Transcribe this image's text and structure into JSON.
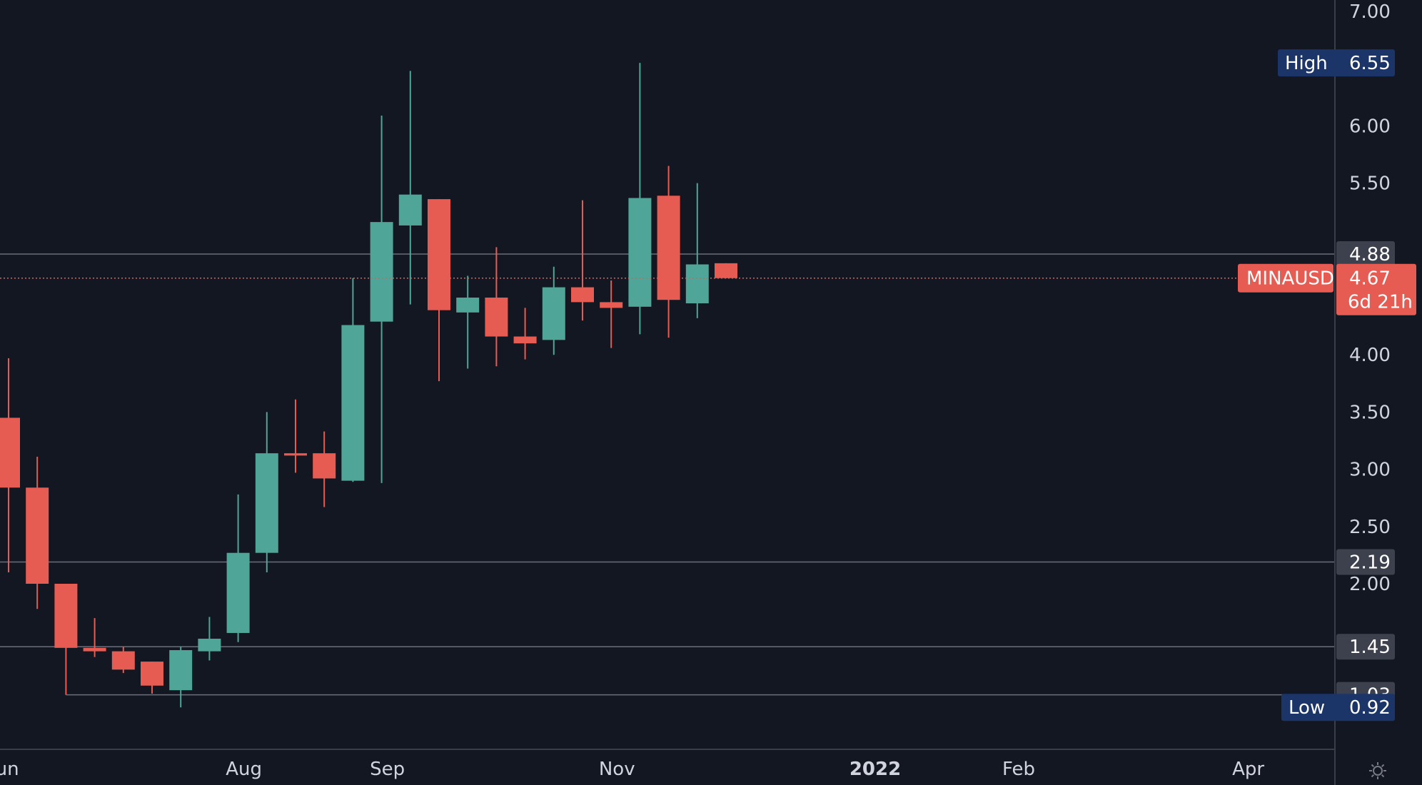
{
  "chart_data": {
    "type": "candlestick",
    "symbol": "MINAUSD",
    "last_price": "4.67",
    "countdown": "6d 21h",
    "high_label": "High",
    "high_value": "6.55",
    "low_label": "Low",
    "low_value": "0.92",
    "ylim": [
      0.65,
      7.1
    ],
    "y_ticks": [
      "7.00",
      "6.00",
      "5.50",
      "4.00",
      "3.50",
      "3.00",
      "2.50",
      "2.00"
    ],
    "x_ticks": [
      {
        "label": "Jun",
        "week": 0,
        "bold": false
      },
      {
        "label": "Aug",
        "week": 8.2,
        "bold": false
      },
      {
        "label": "Sep",
        "week": 13.2,
        "bold": false
      },
      {
        "label": "Nov",
        "week": 21.2,
        "bold": false
      },
      {
        "label": "2022",
        "week": 30.2,
        "bold": true
      },
      {
        "label": "Feb",
        "week": 35.2,
        "bold": false
      },
      {
        "label": "Apr",
        "week": 43.2,
        "bold": false
      }
    ],
    "horizontal_levels": [
      {
        "value": 4.88,
        "label": "4.88"
      },
      {
        "value": 2.19,
        "label": "2.19"
      },
      {
        "value": 1.45,
        "label": "1.45"
      },
      {
        "value": 1.03,
        "label": "1.03"
      }
    ],
    "colors": {
      "up": "#4fa597",
      "down": "#e65c52",
      "background": "#131722",
      "level_line": "#6b6f7b",
      "level_badge": "#3d414d",
      "high_low_badge": "#1c3568",
      "price_badge": "#e65c52"
    },
    "candles": [
      {
        "week": 0,
        "o": 3.45,
        "h": 3.97,
        "l": 2.1,
        "c": 2.84
      },
      {
        "week": 1,
        "o": 2.84,
        "h": 3.11,
        "l": 1.78,
        "c": 2.0
      },
      {
        "week": 2,
        "o": 2.0,
        "h": 2.0,
        "l": 1.03,
        "c": 1.44
      },
      {
        "week": 3,
        "o": 1.44,
        "h": 1.7,
        "l": 1.36,
        "c": 1.41
      },
      {
        "week": 4,
        "o": 1.41,
        "h": 1.45,
        "l": 1.22,
        "c": 1.25
      },
      {
        "week": 5,
        "o": 1.32,
        "h": 1.32,
        "l": 1.04,
        "c": 1.11
      },
      {
        "week": 6,
        "o": 1.07,
        "h": 1.45,
        "l": 0.92,
        "c": 1.42
      },
      {
        "week": 7,
        "o": 1.41,
        "h": 1.71,
        "l": 1.33,
        "c": 1.52
      },
      {
        "week": 8,
        "o": 1.57,
        "h": 2.78,
        "l": 1.49,
        "c": 2.27
      },
      {
        "week": 9,
        "o": 2.27,
        "h": 3.5,
        "l": 2.1,
        "c": 3.14
      },
      {
        "week": 10,
        "o": 3.14,
        "h": 3.61,
        "l": 2.97,
        "c": 3.12
      },
      {
        "week": 11,
        "o": 3.14,
        "h": 3.33,
        "l": 2.67,
        "c": 2.92
      },
      {
        "week": 12,
        "o": 2.9,
        "h": 4.67,
        "l": 2.89,
        "c": 4.26
      },
      {
        "week": 13,
        "o": 4.29,
        "h": 6.09,
        "l": 2.88,
        "c": 5.16
      },
      {
        "week": 14,
        "o": 5.13,
        "h": 6.48,
        "l": 4.44,
        "c": 5.4
      },
      {
        "week": 15,
        "o": 5.36,
        "h": 5.36,
        "l": 3.77,
        "c": 4.39
      },
      {
        "week": 16,
        "o": 4.37,
        "h": 4.69,
        "l": 3.88,
        "c": 4.5
      },
      {
        "week": 17,
        "o": 4.5,
        "h": 4.94,
        "l": 3.9,
        "c": 4.16
      },
      {
        "week": 18,
        "o": 4.16,
        "h": 4.41,
        "l": 3.96,
        "c": 4.1
      },
      {
        "week": 19,
        "o": 4.13,
        "h": 4.77,
        "l": 4.0,
        "c": 4.59
      },
      {
        "week": 20,
        "o": 4.59,
        "h": 5.35,
        "l": 4.3,
        "c": 4.46
      },
      {
        "week": 21,
        "o": 4.46,
        "h": 4.65,
        "l": 4.06,
        "c": 4.41
      },
      {
        "week": 22,
        "o": 4.42,
        "h": 6.55,
        "l": 4.18,
        "c": 5.37
      },
      {
        "week": 23,
        "o": 5.39,
        "h": 5.65,
        "l": 4.15,
        "c": 4.48
      },
      {
        "week": 24,
        "o": 4.45,
        "h": 5.5,
        "l": 4.32,
        "c": 4.79
      },
      {
        "week": 25,
        "o": 4.8,
        "h": 4.8,
        "l": 4.67,
        "c": 4.67
      }
    ]
  }
}
